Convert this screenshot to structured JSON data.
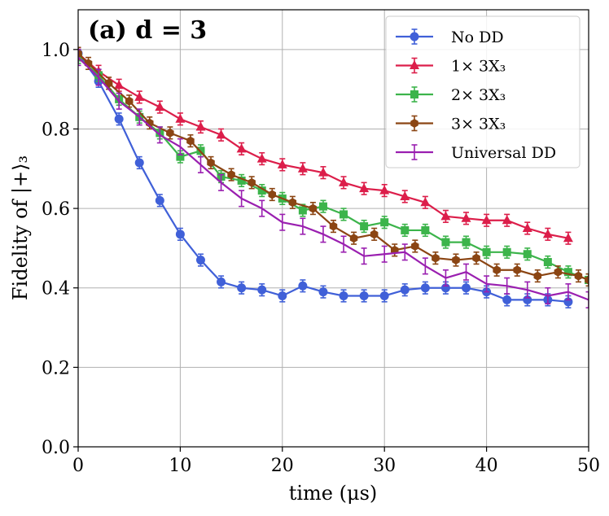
{
  "chart_data": {
    "type": "line",
    "panel_label": "(a) d = 3",
    "xlabel": "time (μs)",
    "ylabel": "Fidelity of |+⟩₃",
    "xlim": [
      0,
      50
    ],
    "ylim": [
      0,
      1.1
    ],
    "xticks": [
      0,
      10,
      20,
      30,
      40,
      50
    ],
    "yticks": [
      0.0,
      0.2,
      0.4,
      0.6,
      0.8,
      1.0
    ],
    "xtick_labels": [
      "0",
      "10",
      "20",
      "30",
      "40",
      "50"
    ],
    "ytick_labels": [
      "0.0",
      "0.2",
      "0.4",
      "0.6",
      "0.8",
      "1.0"
    ],
    "grid": true,
    "legend_position": "top-right",
    "series": [
      {
        "name": "No DD",
        "color": "#4060d8",
        "marker": "circle",
        "x": [
          0,
          2,
          4,
          6,
          8,
          10,
          12,
          14,
          16,
          18,
          20,
          22,
          24,
          26,
          28,
          30,
          32,
          34,
          36,
          38,
          40,
          42,
          44,
          46,
          48
        ],
        "y": [
          0.99,
          0.92,
          0.825,
          0.715,
          0.62,
          0.535,
          0.47,
          0.415,
          0.4,
          0.395,
          0.38,
          0.405,
          0.39,
          0.38,
          0.38,
          0.38,
          0.395,
          0.4,
          0.4,
          0.4,
          0.39,
          0.37,
          0.37,
          0.37,
          0.365
        ],
        "err": [
          0.015,
          0.015,
          0.015,
          0.015,
          0.015,
          0.015,
          0.015,
          0.015,
          0.015,
          0.015,
          0.015,
          0.015,
          0.015,
          0.015,
          0.015,
          0.015,
          0.015,
          0.015,
          0.015,
          0.015,
          0.015,
          0.015,
          0.015,
          0.015,
          0.015
        ]
      },
      {
        "name": "1× 3X₃",
        "color": "#dc1e4a",
        "marker": "triangle",
        "x": [
          0,
          2,
          4,
          6,
          8,
          10,
          12,
          14,
          16,
          18,
          20,
          22,
          24,
          26,
          28,
          30,
          32,
          34,
          36,
          38,
          40,
          42,
          44,
          46,
          48
        ],
        "y": [
          0.99,
          0.945,
          0.91,
          0.88,
          0.855,
          0.825,
          0.805,
          0.785,
          0.75,
          0.725,
          0.71,
          0.7,
          0.69,
          0.665,
          0.65,
          0.645,
          0.63,
          0.615,
          0.58,
          0.575,
          0.57,
          0.57,
          0.55,
          0.535,
          0.525
        ],
        "err": [
          0.015,
          0.015,
          0.015,
          0.015,
          0.015,
          0.015,
          0.015,
          0.015,
          0.015,
          0.015,
          0.015,
          0.015,
          0.015,
          0.015,
          0.015,
          0.015,
          0.015,
          0.015,
          0.015,
          0.015,
          0.015,
          0.015,
          0.015,
          0.015,
          0.015
        ]
      },
      {
        "name": "2× 3X₃",
        "color": "#3cb44b",
        "marker": "square",
        "x": [
          0,
          2,
          4,
          6,
          8,
          10,
          12,
          14,
          16,
          18,
          20,
          22,
          24,
          26,
          28,
          30,
          32,
          34,
          36,
          38,
          40,
          42,
          44,
          46,
          48,
          50
        ],
        "y": [
          0.98,
          0.935,
          0.875,
          0.83,
          0.79,
          0.73,
          0.745,
          0.68,
          0.67,
          0.645,
          0.625,
          0.595,
          0.605,
          0.585,
          0.555,
          0.565,
          0.545,
          0.545,
          0.515,
          0.515,
          0.49,
          0.49,
          0.485,
          0.465,
          0.44,
          0.42
        ],
        "err": [
          0.015,
          0.015,
          0.015,
          0.015,
          0.015,
          0.015,
          0.015,
          0.015,
          0.015,
          0.015,
          0.015,
          0.015,
          0.015,
          0.015,
          0.015,
          0.015,
          0.015,
          0.015,
          0.015,
          0.015,
          0.015,
          0.015,
          0.015,
          0.015,
          0.015,
          0.015
        ]
      },
      {
        "name": "3× 3X₃",
        "color": "#8b4513",
        "marker": "hexagon",
        "x": [
          0,
          1,
          3,
          5,
          7,
          9,
          11,
          13,
          15,
          17,
          19,
          21,
          23,
          25,
          27,
          29,
          31,
          33,
          35,
          37,
          39,
          41,
          43,
          45,
          47,
          49,
          50
        ],
        "y": [
          0.99,
          0.965,
          0.915,
          0.87,
          0.815,
          0.79,
          0.77,
          0.715,
          0.685,
          0.665,
          0.635,
          0.615,
          0.6,
          0.555,
          0.525,
          0.535,
          0.495,
          0.505,
          0.475,
          0.47,
          0.475,
          0.445,
          0.445,
          0.43,
          0.44,
          0.43,
          0.42
        ],
        "err": [
          0.015,
          0.015,
          0.015,
          0.015,
          0.015,
          0.015,
          0.015,
          0.015,
          0.015,
          0.015,
          0.015,
          0.015,
          0.015,
          0.015,
          0.015,
          0.015,
          0.015,
          0.015,
          0.015,
          0.015,
          0.015,
          0.015,
          0.015,
          0.015,
          0.015,
          0.015,
          0.015
        ]
      },
      {
        "name": "Universal DD",
        "color": "#9a1fb0",
        "marker": "none",
        "x": [
          0,
          2,
          4,
          6,
          8,
          10,
          12,
          14,
          16,
          18,
          20,
          22,
          24,
          26,
          28,
          30,
          32,
          34,
          36,
          38,
          40,
          42,
          44,
          46,
          48,
          50
        ],
        "y": [
          0.98,
          0.93,
          0.87,
          0.83,
          0.785,
          0.755,
          0.71,
          0.665,
          0.625,
          0.6,
          0.565,
          0.555,
          0.535,
          0.51,
          0.48,
          0.485,
          0.49,
          0.455,
          0.425,
          0.44,
          0.41,
          0.405,
          0.395,
          0.38,
          0.39,
          0.37
        ],
        "err": [
          0.02,
          0.02,
          0.02,
          0.02,
          0.02,
          0.02,
          0.02,
          0.02,
          0.02,
          0.02,
          0.02,
          0.02,
          0.02,
          0.02,
          0.02,
          0.02,
          0.02,
          0.02,
          0.02,
          0.02,
          0.02,
          0.02,
          0.02,
          0.02,
          0.02,
          0.02
        ]
      }
    ]
  }
}
